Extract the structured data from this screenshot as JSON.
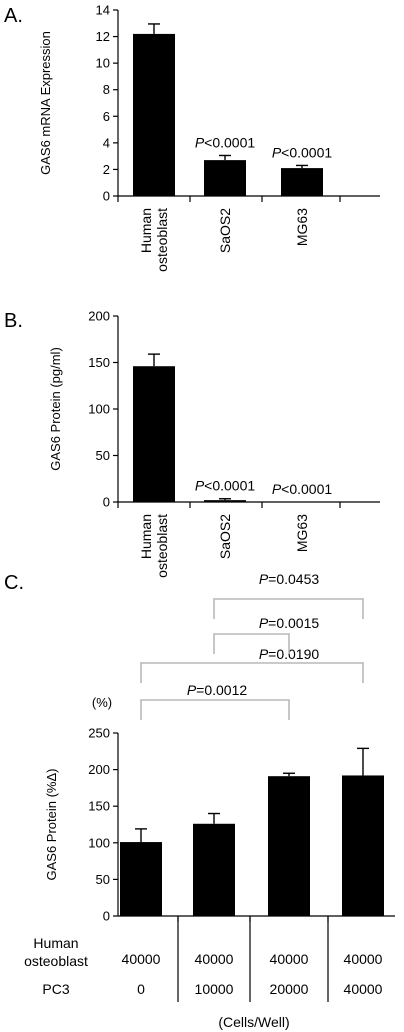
{
  "chart_data": [
    {
      "panel_label": "A.",
      "type": "bar",
      "ylabel": "GAS6 mRNA Expression",
      "ylim": [
        0,
        14
      ],
      "yticks": [
        0,
        2,
        4,
        6,
        8,
        10,
        12,
        14
      ],
      "categories": [
        [
          "Human",
          "osteoblast"
        ],
        [
          "SaOS2"
        ],
        [
          "MG63"
        ]
      ],
      "values": [
        12.2,
        2.7,
        2.1
      ],
      "errors": [
        0.75,
        0.35,
        0.2
      ],
      "annotations": [
        {
          "category_index": 1,
          "p_italic": "P",
          "text": "<0.0001"
        },
        {
          "category_index": 2,
          "p_italic": "P",
          "text": "<0.0001"
        }
      ]
    },
    {
      "panel_label": "B.",
      "type": "bar",
      "ylabel": "GAS6 Protein (pg/ml)",
      "ylim": [
        0,
        200
      ],
      "yticks": [
        0,
        50,
        100,
        150,
        200
      ],
      "categories": [
        [
          "Human",
          "osteoblast"
        ],
        [
          "SaOS2"
        ],
        [
          "MG63"
        ]
      ],
      "values": [
        146,
        2,
        0
      ],
      "errors": [
        13,
        1.5,
        0
      ],
      "annotations": [
        {
          "category_index": 1,
          "p_italic": "P",
          "text": "<0.0001"
        },
        {
          "category_index": 2,
          "p_italic": "P",
          "text": "<0.0001"
        }
      ]
    },
    {
      "panel_label": "C.",
      "type": "bar",
      "ylabel": "GAS6 Protein (%Δ)",
      "unit_label": "(%)",
      "ylim": [
        0,
        250
      ],
      "yticks": [
        0,
        50,
        100,
        150,
        200,
        250
      ],
      "values": [
        101,
        126,
        191,
        192
      ],
      "errors": [
        18,
        14,
        4,
        37
      ],
      "table_rows": [
        {
          "label_lines": [
            "Human",
            "osteoblast"
          ],
          "values": [
            "40000",
            "40000",
            "40000",
            "40000"
          ]
        },
        {
          "label_lines": [
            "PC3"
          ],
          "values": [
            "0",
            "10000",
            "20000",
            "40000"
          ]
        }
      ],
      "footer": "(Cells/Well)",
      "comparisons": [
        {
          "from": 0,
          "to": 2,
          "p_italic": "P",
          "text": "=0.0012"
        },
        {
          "from": 0,
          "to": 3,
          "p_italic": "P",
          "text": "=0.0190"
        },
        {
          "from": 1,
          "to": 2,
          "p_italic": "P",
          "text": "=0.0015"
        },
        {
          "from": 1,
          "to": 3,
          "p_italic": "P",
          "text": "=0.0453"
        }
      ]
    }
  ]
}
